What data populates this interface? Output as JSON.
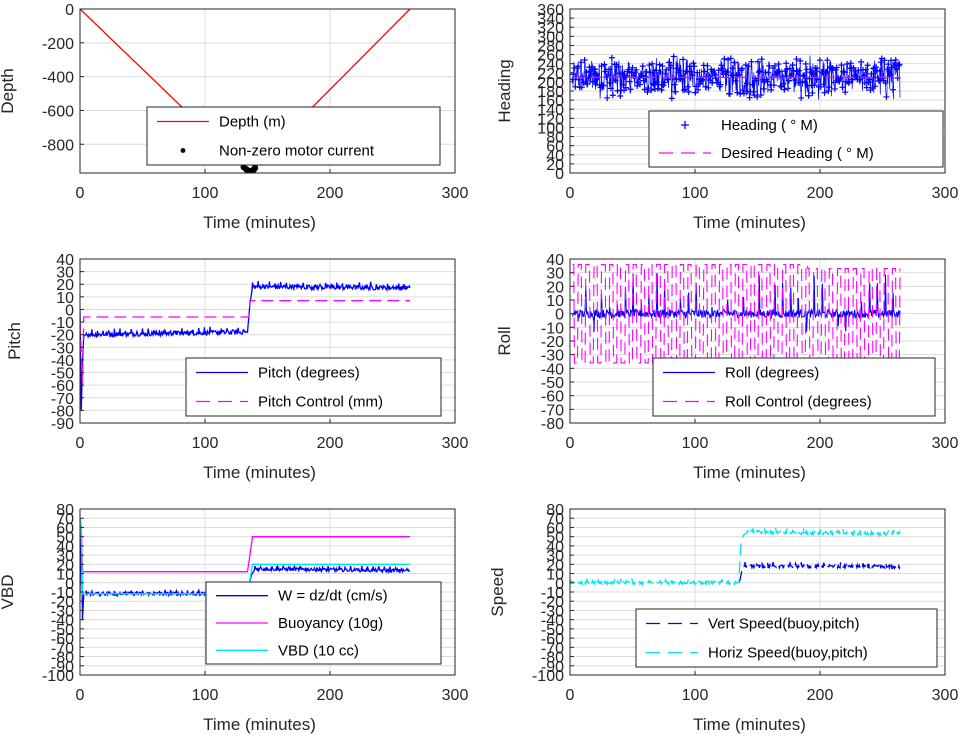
{
  "chart_data": [
    {
      "type": "line",
      "ylabel": "Depth",
      "xlabel": "Time (minutes)",
      "xlim": [
        0,
        300
      ],
      "ylim": [
        -970,
        0
      ],
      "xticks": [
        "0",
        "100",
        "200",
        "300"
      ],
      "yticks": [
        0,
        -200,
        -400,
        -600,
        -800
      ],
      "ytick_labels": [
        "0",
        "-200",
        "-400",
        "-600",
        "-800"
      ],
      "grid": true,
      "legend_placement": "bottom-center",
      "series": [
        {
          "name": "Depth (m)",
          "color": "#ff0000",
          "style": "solid",
          "x": [
            0,
            135,
            264
          ],
          "y": [
            0,
            -960,
            0
          ]
        },
        {
          "name": "Non-zero motor current",
          "color": "#000000",
          "style": "dot",
          "x": [
            131,
            133,
            134,
            135,
            136,
            137,
            138,
            139,
            140
          ],
          "y": [
            -935,
            -948,
            -955,
            -958,
            -960,
            -958,
            -955,
            -950,
            -940
          ]
        }
      ]
    },
    {
      "type": "line",
      "ylabel": "Heading",
      "xlabel": "Time (minutes)",
      "xlim": [
        0,
        300
      ],
      "ylim": [
        0,
        360
      ],
      "xticks": [
        "0",
        "100",
        "200",
        "300"
      ],
      "yticks": [
        0,
        20,
        40,
        60,
        80,
        100,
        120,
        140,
        160,
        180,
        200,
        220,
        240,
        260,
        280,
        300,
        320,
        340,
        360
      ],
      "ytick_labels": [
        "0",
        "20",
        "40",
        "60",
        "80",
        "100",
        "120",
        "140",
        "160",
        "180",
        "200",
        "220",
        "240",
        "260",
        "280",
        "300",
        "320",
        "340",
        "360"
      ],
      "grid": true,
      "legend_placement": "bottom-center",
      "series": [
        {
          "name": "Heading (   ° M)",
          "color": "#0000ff",
          "style": "plus",
          "x": [
            2,
            264
          ],
          "y_range": [
            150,
            285
          ],
          "mean": 210
        },
        {
          "name": "Desired Heading (    ° M)",
          "color": "#ff00ff",
          "style": "dashed",
          "x": [
            2,
            264
          ],
          "y": [
            210,
            210
          ]
        }
      ]
    },
    {
      "type": "line",
      "ylabel": "Pitch",
      "xlabel": "Time (minutes)",
      "xlim": [
        0,
        300
      ],
      "ylim": [
        -90,
        40
      ],
      "xticks": [
        "0",
        "100",
        "200",
        "300"
      ],
      "yticks": [
        40,
        30,
        20,
        10,
        0,
        -10,
        -20,
        -30,
        -40,
        -50,
        -60,
        -70,
        -80,
        -90
      ],
      "ytick_labels": [
        "40",
        "30",
        "20",
        "10",
        "0",
        "-10",
        "-20",
        "-30",
        "-40",
        "-50",
        "-60",
        "-70",
        "-80",
        "-90"
      ],
      "grid": true,
      "legend_placement": "bottom-right",
      "series": [
        {
          "name": "Pitch (degrees)",
          "color": "#0000ff",
          "style": "solid",
          "x": [
            0,
            1,
            2,
            3,
            5,
            133,
            134,
            136,
            138,
            264
          ],
          "y": [
            0,
            -80,
            -40,
            -21,
            -20,
            -18,
            -18,
            5,
            18,
            17
          ]
        },
        {
          "name": "Pitch Control (mm)",
          "color": "#ff00ff",
          "style": "dashed",
          "x": [
            0,
            2,
            3,
            134,
            135,
            136,
            264
          ],
          "y": [
            -10,
            -60,
            -6,
            -6,
            -6,
            7,
            7
          ]
        }
      ]
    },
    {
      "type": "line",
      "ylabel": "Roll",
      "xlabel": "Time (minutes)",
      "xlim": [
        0,
        300
      ],
      "ylim": [
        -80,
        40
      ],
      "xticks": [
        "0",
        "100",
        "200",
        "300"
      ],
      "yticks": [
        40,
        30,
        20,
        10,
        0,
        -10,
        -20,
        -30,
        -40,
        -50,
        -60,
        -70,
        -80
      ],
      "ytick_labels": [
        "40",
        "30",
        "20",
        "10",
        "0",
        "-10",
        "-20",
        "-30",
        "-40",
        "-50",
        "-60",
        "-70",
        "-80"
      ],
      "grid": true,
      "legend_placement": "bottom-right",
      "series": [
        {
          "name": "Roll (degrees)",
          "color": "#0000ff",
          "style": "solid",
          "x": [
            2,
            264
          ],
          "y_range": [
            -20,
            30
          ],
          "mean": 0
        },
        {
          "name": "Roll Control (degrees)",
          "color": "#ff00ff",
          "style": "dashed",
          "x": [
            2,
            264
          ],
          "y_range": [
            -38,
            38
          ],
          "mean": 0
        }
      ]
    },
    {
      "type": "line",
      "ylabel": "VBD",
      "xlabel": "Time (minutes)",
      "xlim": [
        0,
        300
      ],
      "ylim": [
        -100,
        80
      ],
      "xticks": [
        "0",
        "100",
        "200",
        "300"
      ],
      "yticks": [
        80,
        70,
        60,
        50,
        40,
        30,
        20,
        10,
        0,
        -10,
        -20,
        -30,
        -40,
        -50,
        -60,
        -70,
        -80,
        -90,
        -100
      ],
      "ytick_labels": [
        "80",
        "70",
        "60",
        "50",
        "40",
        "30",
        "20",
        "10",
        "0",
        "-10",
        "-20",
        "-30",
        "-40",
        "-50",
        "-60",
        "-70",
        "-80",
        "-90",
        "-100"
      ],
      "grid": true,
      "legend_placement": "bottom-right",
      "series": [
        {
          "name": "W = dz/dt (cm/s)",
          "color": "#0000ff",
          "style": "solid",
          "x": [
            0,
            1,
            2,
            3,
            5,
            133,
            134,
            137,
            140,
            264
          ],
          "y": [
            -12,
            60,
            -40,
            -12,
            -12,
            -12,
            -12,
            8,
            15,
            13
          ]
        },
        {
          "name": "Buoyancy (10g)",
          "color": "#ff00ff",
          "style": "solid",
          "x": [
            0,
            1,
            2,
            3,
            133,
            134,
            138,
            264
          ],
          "y": [
            70,
            60,
            12,
            12,
            12,
            12,
            50,
            50
          ]
        },
        {
          "name": "VBD (10 cc)",
          "color": "#00e5ee",
          "style": "solid",
          "x": [
            0,
            1,
            2,
            3,
            133,
            134,
            138,
            264
          ],
          "y": [
            70,
            55,
            -12,
            -12,
            -12,
            -12,
            20,
            20
          ]
        }
      ]
    },
    {
      "type": "line",
      "ylabel": "Speed",
      "xlabel": "Time (minutes)",
      "xlim": [
        0,
        300
      ],
      "ylim": [
        -100,
        80
      ],
      "xticks": [
        "0",
        "100",
        "200",
        "300"
      ],
      "yticks": [
        80,
        70,
        60,
        50,
        40,
        30,
        20,
        10,
        0,
        -10,
        -20,
        -30,
        -40,
        -50,
        -60,
        -70,
        -80,
        -90,
        -100
      ],
      "ytick_labels": [
        "80",
        "70",
        "60",
        "50",
        "40",
        "30",
        "20",
        "10",
        "0",
        "-10",
        "-20",
        "-30",
        "-40",
        "-50",
        "-60",
        "-70",
        "-80",
        "-90",
        "-100"
      ],
      "grid": true,
      "legend_placement": "bottom-right",
      "series": [
        {
          "name": "Vert Speed(buoy,pitch)",
          "color": "#0000ff",
          "style": "dashed",
          "x": [
            135,
            136,
            137,
            138,
            140,
            264
          ],
          "y": [
            0,
            3,
            10,
            18,
            18,
            17
          ]
        },
        {
          "name": "Horiz Speed(buoy,pitch)",
          "color": "#00e5ee",
          "style": "dashed",
          "x": [
            0,
            133,
            135,
            136,
            137,
            139,
            142,
            264
          ],
          "y": [
            0,
            0,
            0,
            25,
            45,
            52,
            55,
            53
          ]
        }
      ]
    }
  ]
}
